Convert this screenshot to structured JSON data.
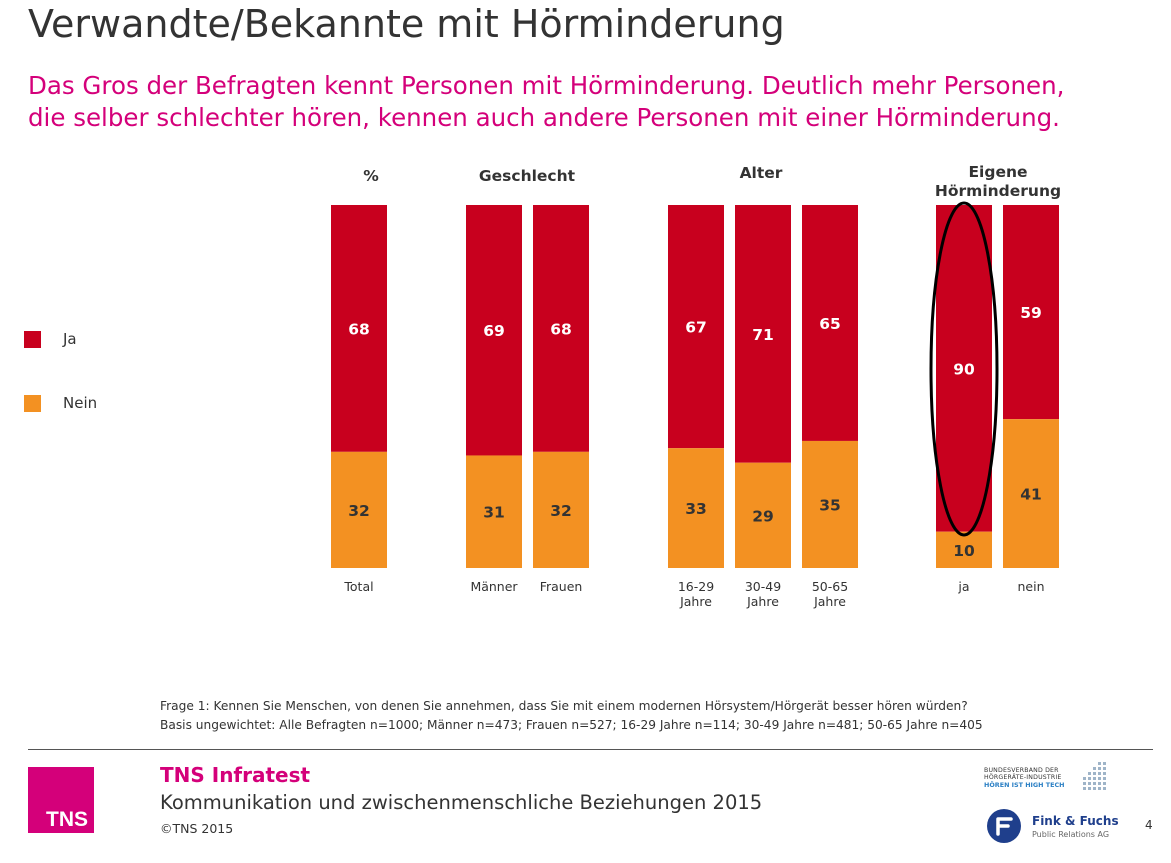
{
  "title": "Verwandte/Bekannte mit Hörminderung",
  "subtitle_lines": [
    "Das Gros der Befragten kennt Personen mit Hörminderung. Deutlich mehr Personen,",
    "die selber schlechter hören, kennen auch andere Personen mit einer Hörminderung."
  ],
  "colors": {
    "ja": "#c8001e",
    "nein": "#f39122",
    "accent": "#d4007a",
    "text": "#333333"
  },
  "legend": [
    {
      "key": "ja",
      "label": "Ja"
    },
    {
      "key": "nein",
      "label": "Nein"
    }
  ],
  "chart_data": {
    "type": "bar",
    "stacked": true,
    "unit": "%",
    "ylim": [
      0,
      100
    ],
    "groups": [
      {
        "header": "%",
        "categories": [
          "Total"
        ]
      },
      {
        "header": "Geschlecht",
        "categories": [
          "Männer",
          "Frauen"
        ]
      },
      {
        "header": "Alter",
        "categories": [
          "16-29\nJahre",
          "30-49\nJahre",
          "50-65\nJahre"
        ]
      },
      {
        "header": "Eigene\nHörminderung",
        "categories": [
          "ja",
          "nein"
        ],
        "highlighted_category": "ja"
      }
    ],
    "categories": [
      "Total",
      "Männer",
      "Frauen",
      "16-29\nJahre",
      "30-49\nJahre",
      "50-65\nJahre",
      "ja",
      "nein"
    ],
    "series": [
      {
        "name": "Ja",
        "values": [
          68,
          69,
          68,
          67,
          71,
          65,
          90,
          59
        ]
      },
      {
        "name": "Nein",
        "values": [
          32,
          31,
          32,
          33,
          29,
          35,
          10,
          41
        ]
      }
    ]
  },
  "footnote": {
    "question": "Frage 1: Kennen Sie Menschen, von denen Sie annehmen, dass Sie mit einem modernen Hörsystem/Hörgerät besser hören würden?",
    "base": "Basis ungewichtet: Alle Befragten n=1000; Männer n=473; Frauen n=527; 16-29 Jahre n=114; 30-49 Jahre n=481; 50-65 Jahre n=405"
  },
  "footer": {
    "logo_text": "TNS",
    "company": "TNS Infratest",
    "study": "Kommunikation und zwischenmenschliche Beziehungen 2015",
    "copyright": "©TNS 2015",
    "partner1_lines": [
      "BUNDESVERBAND DER",
      "HÖRGERÄTE-INDUSTRIE",
      "HÖREN IST HIGH TECH"
    ],
    "partner2_name": "Fink & Fuchs",
    "partner2_sub": "Public Relations AG",
    "page_number": "4"
  }
}
